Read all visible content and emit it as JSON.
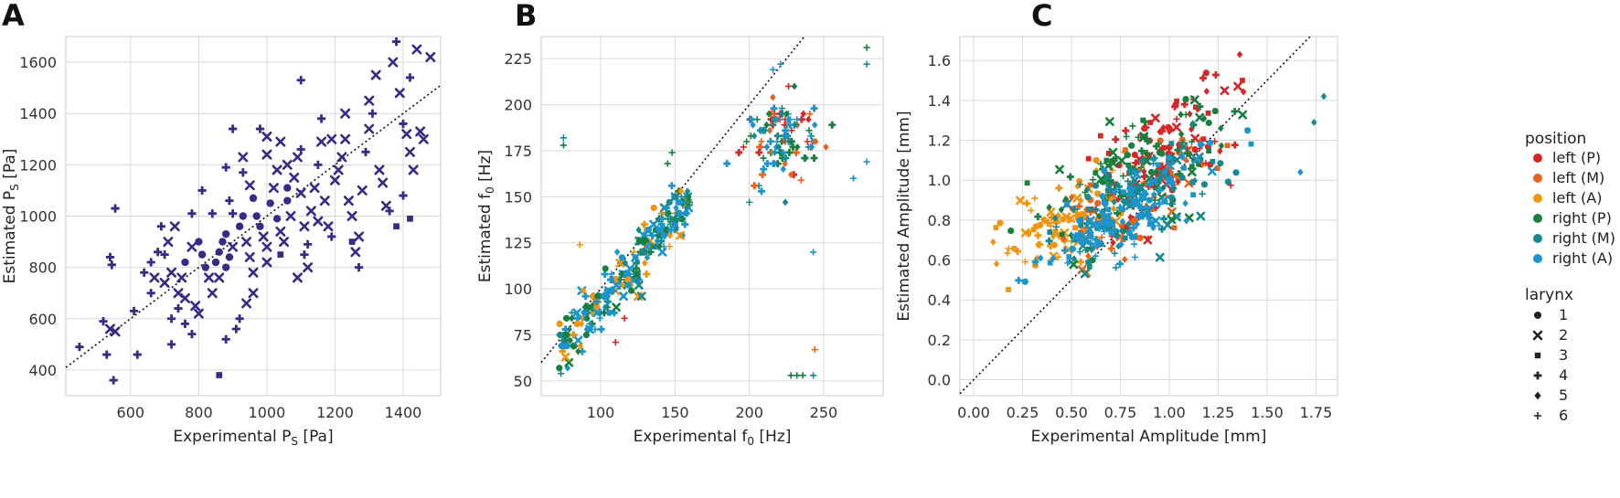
{
  "chart_data": [
    {
      "panel": "A",
      "type": "scatter",
      "title": "",
      "xlabel": "Experimental P",
      "xlabel_sub": "S",
      "xlabel_unit": " [Pa]",
      "ylabel": "Estimated P",
      "ylabel_sub": "S",
      "ylabel_unit": " [Pa]",
      "xlim": [
        410,
        1510
      ],
      "ylim": [
        300,
        1700
      ],
      "xticks": [
        600,
        800,
        1000,
        1200,
        1400
      ],
      "yticks": [
        400,
        600,
        800,
        1000,
        1200,
        1400,
        1600
      ],
      "identity_line": true,
      "color": "#3b2a85",
      "points": [
        [
          450,
          490,
          "+"
        ],
        [
          520,
          590,
          "+"
        ],
        [
          540,
          560,
          "x"
        ],
        [
          530,
          460,
          "+"
        ],
        [
          555,
          550,
          "x"
        ],
        [
          550,
          360,
          "+"
        ],
        [
          545,
          810,
          "+"
        ],
        [
          540,
          840,
          "+"
        ],
        [
          555,
          1030,
          "+"
        ],
        [
          610,
          630,
          "+"
        ],
        [
          620,
          460,
          "+"
        ],
        [
          660,
          700,
          "+"
        ],
        [
          640,
          780,
          "+"
        ],
        [
          660,
          820,
          "+"
        ],
        [
          680,
          860,
          "+"
        ],
        [
          670,
          760,
          "x"
        ],
        [
          700,
          740,
          "x"
        ],
        [
          690,
          960,
          "+"
        ],
        [
          710,
          900,
          "x"
        ],
        [
          720,
          780,
          "x"
        ],
        [
          720,
          600,
          "+"
        ],
        [
          740,
          640,
          "+"
        ],
        [
          760,
          680,
          "x"
        ],
        [
          740,
          700,
          "x"
        ],
        [
          750,
          760,
          "x"
        ],
        [
          760,
          820,
          "o"
        ],
        [
          780,
          880,
          "x"
        ],
        [
          780,
          1010,
          "+"
        ],
        [
          800,
          900,
          "o"
        ],
        [
          810,
          850,
          "o"
        ],
        [
          820,
          800,
          "o"
        ],
        [
          830,
          760,
          "x"
        ],
        [
          840,
          700,
          "x"
        ],
        [
          790,
          650,
          "x"
        ],
        [
          800,
          620,
          "x"
        ],
        [
          760,
          580,
          "+"
        ],
        [
          780,
          540,
          "+"
        ],
        [
          720,
          500,
          "+"
        ],
        [
          850,
          820,
          "o"
        ],
        [
          860,
          860,
          "o"
        ],
        [
          870,
          900,
          "o"
        ],
        [
          880,
          930,
          "o"
        ],
        [
          860,
          760,
          "x"
        ],
        [
          880,
          800,
          "o"
        ],
        [
          890,
          840,
          "o"
        ],
        [
          900,
          880,
          "x"
        ],
        [
          890,
          1060,
          "+"
        ],
        [
          880,
          1190,
          "+"
        ],
        [
          900,
          1010,
          "+"
        ],
        [
          920,
          960,
          "o"
        ],
        [
          930,
          1000,
          "o"
        ],
        [
          940,
          900,
          "x"
        ],
        [
          950,
          840,
          "x"
        ],
        [
          960,
          780,
          "x"
        ],
        [
          960,
          700,
          "x"
        ],
        [
          940,
          660,
          "x"
        ],
        [
          920,
          600,
          "+"
        ],
        [
          910,
          560,
          "+"
        ],
        [
          880,
          520,
          "+"
        ],
        [
          860,
          380,
          "s"
        ],
        [
          900,
          1340,
          "+"
        ],
        [
          930,
          1170,
          "+"
        ],
        [
          960,
          1070,
          "o"
        ],
        [
          970,
          1000,
          "o"
        ],
        [
          980,
          960,
          "o"
        ],
        [
          990,
          920,
          "x"
        ],
        [
          1000,
          880,
          "x"
        ],
        [
          1000,
          820,
          "x"
        ],
        [
          1010,
          1050,
          "o"
        ],
        [
          1020,
          1110,
          "x"
        ],
        [
          1030,
          990,
          "o"
        ],
        [
          1040,
          940,
          "x"
        ],
        [
          1050,
          900,
          "x"
        ],
        [
          1060,
          1060,
          "o"
        ],
        [
          1070,
          1000,
          "x"
        ],
        [
          1080,
          1150,
          "x"
        ],
        [
          1060,
          1200,
          "x"
        ],
        [
          1040,
          1290,
          "x"
        ],
        [
          1000,
          1310,
          "x"
        ],
        [
          980,
          1340,
          "+"
        ],
        [
          1100,
          1530,
          "+"
        ],
        [
          1090,
          1230,
          "x"
        ],
        [
          1100,
          1090,
          "x"
        ],
        [
          1110,
          960,
          "x"
        ],
        [
          1120,
          890,
          "+"
        ],
        [
          1110,
          850,
          "+"
        ],
        [
          1120,
          800,
          "x"
        ],
        [
          1130,
          1020,
          "x"
        ],
        [
          1140,
          1110,
          "x"
        ],
        [
          1150,
          1200,
          "+"
        ],
        [
          1160,
          1290,
          "x"
        ],
        [
          1160,
          1380,
          "+"
        ],
        [
          1170,
          1060,
          "x"
        ],
        [
          1180,
          960,
          "x"
        ],
        [
          1190,
          920,
          "+"
        ],
        [
          1200,
          1140,
          "x"
        ],
        [
          1210,
          1180,
          "x"
        ],
        [
          1220,
          1230,
          "x"
        ],
        [
          1230,
          1300,
          "x"
        ],
        [
          1240,
          1060,
          "x"
        ],
        [
          1250,
          1000,
          "x"
        ],
        [
          1250,
          900,
          "s"
        ],
        [
          1260,
          860,
          "x"
        ],
        [
          1270,
          800,
          "+"
        ],
        [
          1280,
          1100,
          "x"
        ],
        [
          1290,
          1250,
          "+"
        ],
        [
          1300,
          1340,
          "x"
        ],
        [
          1300,
          1450,
          "x"
        ],
        [
          1310,
          1400,
          "+"
        ],
        [
          1320,
          1550,
          "x"
        ],
        [
          1330,
          1180,
          "x"
        ],
        [
          1340,
          1130,
          "x"
        ],
        [
          1350,
          1040,
          "x"
        ],
        [
          1360,
          1020,
          "+"
        ],
        [
          1370,
          1600,
          "x"
        ],
        [
          1380,
          1680,
          "+"
        ],
        [
          1390,
          1480,
          "x"
        ],
        [
          1400,
          1360,
          "+"
        ],
        [
          1410,
          1320,
          "x"
        ],
        [
          1420,
          1250,
          "x"
        ],
        [
          1430,
          1180,
          "x"
        ],
        [
          1420,
          1540,
          "+"
        ],
        [
          1440,
          1650,
          "x"
        ],
        [
          1450,
          1330,
          "x"
        ],
        [
          1460,
          1300,
          "x"
        ],
        [
          1480,
          1620,
          "x"
        ],
        [
          1420,
          990,
          "s"
        ],
        [
          1380,
          960,
          "s"
        ],
        [
          1400,
          1080,
          "+"
        ],
        [
          1270,
          920,
          "x"
        ],
        [
          1150,
          980,
          "x"
        ],
        [
          1090,
          760,
          "x"
        ],
        [
          1190,
          1300,
          "x"
        ],
        [
          1230,
          1400,
          "x"
        ],
        [
          1100,
          1260,
          "+"
        ],
        [
          1030,
          1180,
          "x"
        ],
        [
          1000,
          1240,
          "x"
        ],
        [
          950,
          1120,
          "x"
        ],
        [
          930,
          1230,
          "x"
        ],
        [
          1040,
          850,
          "s"
        ],
        [
          1060,
          1110,
          "o"
        ],
        [
          840,
          1010,
          "+"
        ],
        [
          810,
          1100,
          "+"
        ],
        [
          700,
          850,
          "+"
        ],
        [
          730,
          960,
          "x"
        ]
      ]
    },
    {
      "panel": "B",
      "type": "scatter",
      "title": "",
      "xlabel": "Experimental f",
      "xlabel_sub": "0",
      "xlabel_unit": " [Hz]",
      "ylabel": "Estimated f",
      "ylabel_sub": "0",
      "ylabel_unit": " [Hz]",
      "xlim": [
        60,
        290
      ],
      "ylim": [
        42,
        237
      ],
      "xticks": [
        100,
        150,
        200,
        250
      ],
      "yticks": [
        50,
        75,
        100,
        125,
        150,
        175,
        200,
        225
      ],
      "identity_line": true
    },
    {
      "panel": "C",
      "type": "scatter",
      "title": "",
      "xlabel": "Experimental Amplitude [mm]",
      "ylabel": "Estimated Amplitude [mm]",
      "xlim": [
        -0.07,
        1.86
      ],
      "ylim": [
        -0.08,
        1.72
      ],
      "xticks": [
        "0.00",
        "0.25",
        "0.50",
        "0.75",
        "1.00",
        "1.25",
        "1.50",
        "1.75"
      ],
      "yticks": [
        "0.0",
        "0.2",
        "0.4",
        "0.6",
        "0.8",
        "1.0",
        "1.2",
        "1.4",
        "1.6"
      ],
      "identity_line": true
    }
  ],
  "panel_letters": [
    "A",
    "B",
    "C"
  ],
  "legend": {
    "position_title": "position",
    "positions": [
      {
        "label": "left (P)",
        "color": "#d62728"
      },
      {
        "label": "left (M)",
        "color": "#e8641e"
      },
      {
        "label": "left (A)",
        "color": "#f0950f"
      },
      {
        "label": "right (P)",
        "color": "#1a7f3e"
      },
      {
        "label": "right (M)",
        "color": "#17898f"
      },
      {
        "label": "right (A)",
        "color": "#1b95cc"
      }
    ],
    "larynx_title": "larynx",
    "larynx": [
      {
        "label": "1",
        "marker": "o"
      },
      {
        "label": "2",
        "marker": "x"
      },
      {
        "label": "3",
        "marker": "s"
      },
      {
        "label": "4",
        "marker": "+"
      },
      {
        "label": "5",
        "marker": "d"
      },
      {
        "label": "6",
        "marker": "y"
      }
    ]
  }
}
